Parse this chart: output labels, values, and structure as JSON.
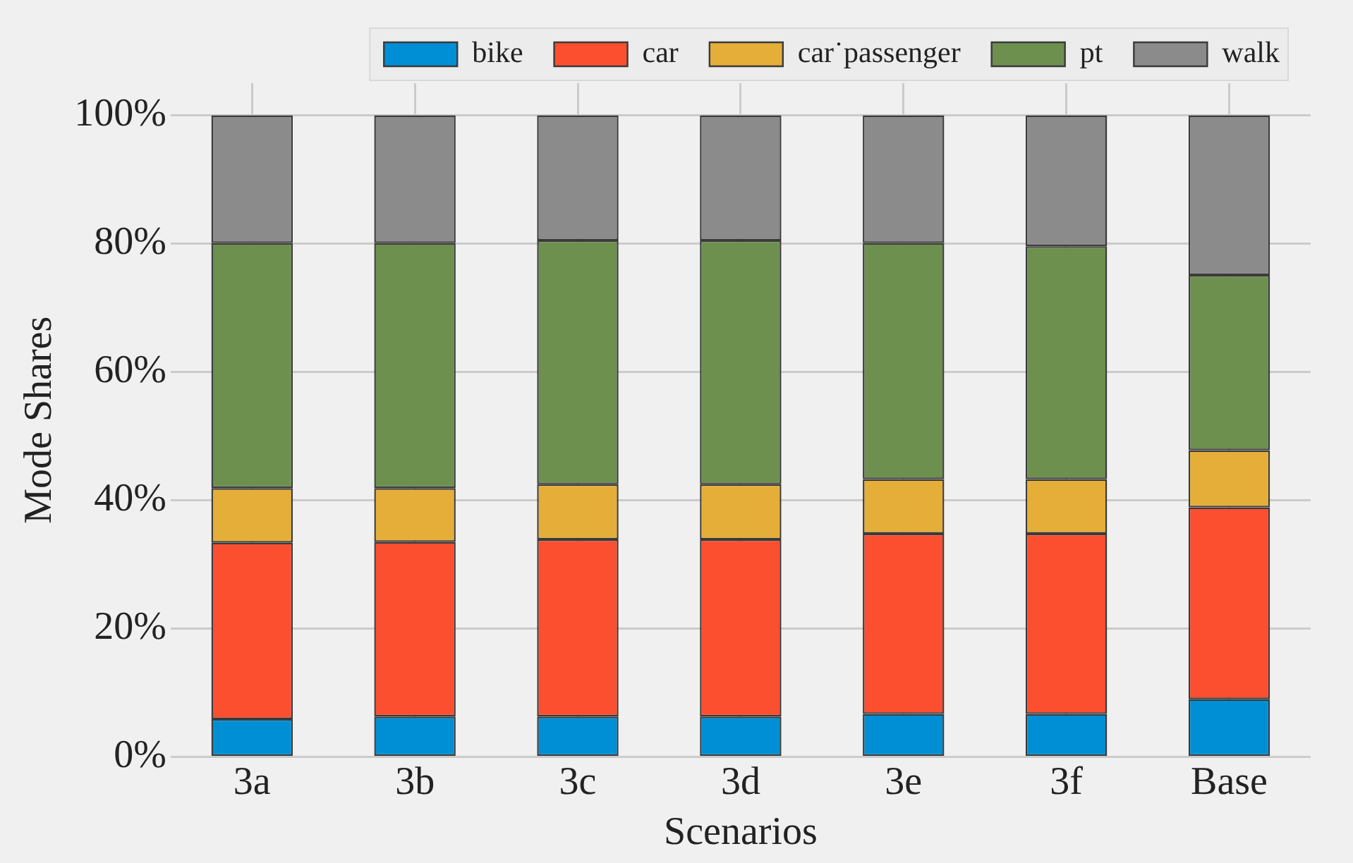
{
  "chart_data": {
    "type": "bar",
    "stacked": true,
    "xlabel": "Scenarios",
    "ylabel": "Mode Shares",
    "categories": [
      "3a",
      "3b",
      "3c",
      "3d",
      "3e",
      "3f",
      "Base"
    ],
    "series": [
      {
        "name": "bike",
        "color": "#008fd5",
        "values": [
          5.9,
          6.3,
          6.3,
          6.3,
          6.7,
          6.7,
          9.0
        ]
      },
      {
        "name": "car",
        "color": "#fc4f30",
        "values": [
          27.5,
          27.2,
          27.6,
          27.6,
          28.1,
          28.1,
          29.9
        ]
      },
      {
        "name": "car˙passenger",
        "color": "#e5ae38",
        "values": [
          8.5,
          8.4,
          8.6,
          8.6,
          8.5,
          8.5,
          8.9
        ]
      },
      {
        "name": "pt",
        "color": "#6d904f",
        "values": [
          38.2,
          38.2,
          38.0,
          38.0,
          36.8,
          36.3,
          27.3
        ]
      },
      {
        "name": "walk",
        "color": "#8b8b8b",
        "values": [
          19.9,
          19.9,
          19.5,
          19.5,
          19.9,
          20.4,
          24.9
        ]
      }
    ],
    "ylim": [
      0,
      105
    ],
    "yticks": [
      {
        "value": 0,
        "label": "0%"
      },
      {
        "value": 20,
        "label": "20%"
      },
      {
        "value": 40,
        "label": "40%"
      },
      {
        "value": 60,
        "label": "60%"
      },
      {
        "value": 80,
        "label": "80%"
      },
      {
        "value": 100,
        "label": "100%"
      }
    ],
    "grid": true,
    "legend": "top right"
  }
}
